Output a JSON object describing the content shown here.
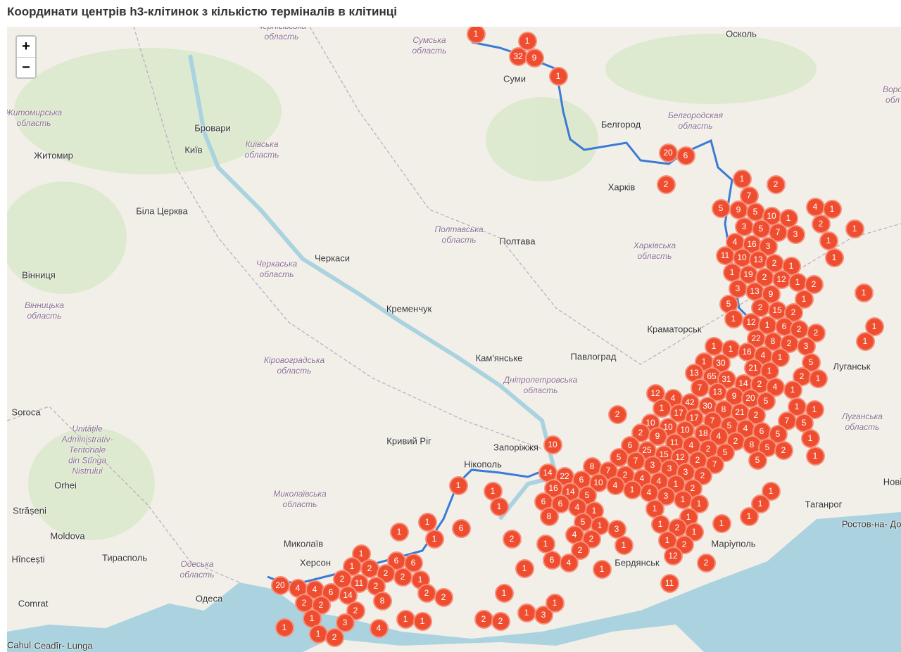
{
  "title": "Координати центрів h3-клітинок з кількістю терміналів в клітинці",
  "zoom": {
    "in": "+",
    "out": "−"
  },
  "colors": {
    "marker": "#ef4d2f",
    "marker_border": "#f6907c",
    "land": "#f2efe9",
    "water": "#aad3df",
    "frontline": "#3a7bd5"
  },
  "labels": [
    "Сумська\nобласть",
    "Чернігівська\nобласть",
    "Суми",
    "Осколь",
    "Белгород",
    "Белгородская\nобласть",
    "Харків",
    "Бровари",
    "Київ",
    "Київська\nобласть",
    "Житомир",
    "Житомирська\nобласть",
    "Біла Церква",
    "Полтавська\nобласть",
    "Полтава",
    "Харківська\nобласть",
    "Черкаси",
    "Черкаська\nобласть",
    "Кременчук",
    "Вінниця",
    "Вінницька\nобласть",
    "Краматорськ",
    "Луганська\nобласть",
    "Луганськ",
    "Кам'янське",
    "Павлоград",
    "Дніпропетровська\nобласть",
    "Кіровоградська\nобласть",
    "Soroca",
    "Unitățile\nAdministrativ-\nTeritoriale\ndin Stînga\nNistrului",
    "Кривий Ріг",
    "Запоріжжя",
    "Нікополь",
    "Orhei",
    "Миколаївська\nобласть",
    "Strășeni",
    "Moldova",
    "Миколаїв",
    "Hîncești",
    "Тирасполь",
    "Одеська\nобласть",
    "Одеса",
    "Comrat",
    "Cahul",
    "Ceadîr-\nLunga",
    "Херсон",
    "Бердянськ",
    "Маріуполь",
    "Таганрог",
    "Ростов-на-\nДону",
    "Новi",
    "Воро\nобл"
  ],
  "markers": [
    1,
    1,
    32,
    9,
    1,
    20,
    6,
    2,
    1,
    2,
    7,
    5,
    9,
    5,
    10,
    1,
    4,
    1,
    2,
    1,
    3,
    5,
    7,
    3,
    1,
    4,
    16,
    3,
    1,
    11,
    10,
    13,
    2,
    1,
    1,
    19,
    2,
    12,
    1,
    2,
    1,
    3,
    13,
    9,
    1,
    5,
    2,
    15,
    2,
    1,
    12,
    1,
    6,
    2,
    2,
    1,
    1,
    22,
    8,
    2,
    3,
    1,
    1,
    16,
    4,
    1,
    5,
    1,
    30,
    21,
    1,
    2,
    1,
    13,
    65,
    31,
    14,
    2,
    4,
    1,
    7,
    13,
    9,
    20,
    5,
    1,
    1,
    12,
    4,
    42,
    30,
    8,
    21,
    2,
    7,
    5,
    2,
    1,
    17,
    17,
    7,
    5,
    4,
    6,
    5,
    1,
    10,
    10,
    10,
    18,
    4,
    2,
    8,
    5,
    2,
    1,
    2,
    9,
    11,
    4,
    2,
    5,
    5,
    10,
    6,
    25,
    15,
    12,
    2,
    7,
    5,
    7,
    3,
    3,
    3,
    2,
    8,
    7,
    2,
    4,
    4,
    1,
    2,
    14,
    22,
    6,
    10,
    4,
    1,
    4,
    3,
    1,
    1,
    1,
    1,
    16,
    14,
    5,
    6,
    6,
    4,
    1,
    1,
    1,
    1,
    1,
    8,
    5,
    1,
    3,
    1,
    2,
    1,
    4,
    2,
    1,
    1,
    2,
    2,
    12,
    6,
    4,
    1,
    2,
    11,
    1,
    1,
    1,
    1,
    1,
    1,
    6,
    2,
    1,
    1,
    1,
    6,
    6,
    1,
    2,
    2,
    2,
    1,
    2,
    11,
    2,
    20,
    4,
    4,
    6,
    14,
    2,
    2,
    1,
    2,
    2,
    8,
    2,
    1,
    3,
    1,
    1,
    2,
    4,
    1,
    1,
    2,
    2,
    1,
    3,
    1
  ]
}
